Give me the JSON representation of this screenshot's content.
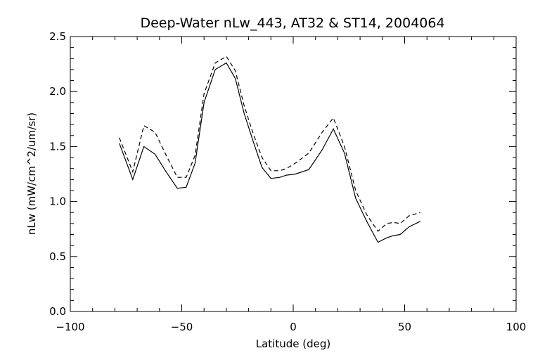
{
  "chart_data": {
    "type": "line",
    "title": "Deep-Water nLw_443, AT32 & ST14, 2004064",
    "xlabel": "Latitude (deg)",
    "ylabel": "nLw (mW/cm^2/um/sr)",
    "xlim": [
      -100,
      100
    ],
    "ylim": [
      0.0,
      2.5
    ],
    "grid": false,
    "legend": "none",
    "x_ticks": [
      -100,
      -50,
      0,
      50,
      100
    ],
    "x_tick_labels": [
      "−100",
      "−50",
      "0",
      "50",
      "100"
    ],
    "y_ticks": [
      0.0,
      0.5,
      1.0,
      1.5,
      2.0,
      2.5
    ],
    "y_tick_labels": [
      "0.0",
      "0.5",
      "1.0",
      "1.5",
      "2.0",
      "2.5"
    ],
    "series": [
      {
        "style": "solid",
        "x": [
          -78,
          -72,
          -67,
          -62,
          -57,
          -52,
          -48,
          -44,
          -40,
          -35,
          -30,
          -26,
          -22,
          -18,
          -14,
          -10,
          -6,
          -3,
          1,
          7,
          13,
          18,
          23,
          28,
          33,
          38,
          42,
          45,
          48,
          52,
          57
        ],
        "y": [
          1.53,
          1.2,
          1.5,
          1.43,
          1.27,
          1.12,
          1.13,
          1.35,
          1.9,
          2.2,
          2.26,
          2.12,
          1.8,
          1.55,
          1.31,
          1.21,
          1.22,
          1.24,
          1.25,
          1.29,
          1.47,
          1.66,
          1.44,
          1.03,
          0.82,
          0.63,
          0.67,
          0.69,
          0.7,
          0.77,
          0.82
        ]
      },
      {
        "style": "dashed",
        "x": [
          -78,
          -72,
          -67,
          -62,
          -57,
          -52,
          -48,
          -44,
          -40,
          -35,
          -30,
          -26,
          -22,
          -18,
          -14,
          -10,
          -6,
          -3,
          1,
          7,
          13,
          18,
          23,
          28,
          33,
          38,
          42,
          45,
          48,
          52,
          57
        ],
        "y": [
          1.58,
          1.27,
          1.69,
          1.63,
          1.42,
          1.22,
          1.22,
          1.42,
          1.98,
          2.26,
          2.32,
          2.19,
          1.87,
          1.62,
          1.4,
          1.28,
          1.28,
          1.3,
          1.35,
          1.44,
          1.63,
          1.76,
          1.5,
          1.1,
          0.88,
          0.73,
          0.8,
          0.81,
          0.8,
          0.87,
          0.9
        ]
      }
    ]
  }
}
